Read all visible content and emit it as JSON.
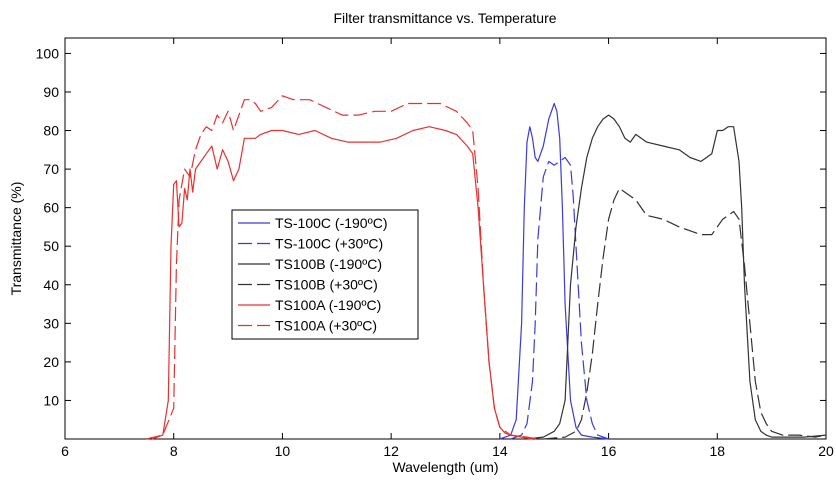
{
  "chart_data": {
    "type": "line",
    "title": "Filter transmittance vs. Temperature",
    "xlabel": "Wavelength (um)",
    "ylabel": "Transmittance (%)",
    "xlim": [
      6,
      20
    ],
    "ylim": [
      0,
      104
    ],
    "xticks": [
      6,
      8,
      10,
      12,
      14,
      16,
      18,
      20
    ],
    "yticks": [
      10,
      20,
      30,
      40,
      50,
      60,
      70,
      80,
      90,
      100
    ],
    "grid": false,
    "legend_position": "center-left",
    "series": [
      {
        "name": "TS-100C (-190ºC)",
        "color": "#3b3bdc",
        "dash": "solid",
        "x": [
          14.0,
          14.2,
          14.3,
          14.4,
          14.45,
          14.5,
          14.55,
          14.6,
          14.65,
          14.7,
          14.8,
          14.9,
          15.0,
          15.05,
          15.1,
          15.15,
          15.2,
          15.3,
          15.4,
          15.5,
          15.7,
          16.0
        ],
        "y": [
          0,
          1,
          5,
          30,
          60,
          77,
          81,
          78,
          73,
          72,
          76,
          83,
          87,
          85,
          78,
          60,
          35,
          10,
          3,
          1,
          0.5,
          0
        ]
      },
      {
        "name": "TS-100C (+30ºC)",
        "color": "#3b3bdc",
        "dash": "dashed",
        "x": [
          14.2,
          14.4,
          14.5,
          14.6,
          14.65,
          14.7,
          14.8,
          14.9,
          15.0,
          15.1,
          15.2,
          15.3,
          15.35,
          15.4,
          15.5,
          15.6,
          15.7,
          15.8,
          16.0
        ],
        "y": [
          0,
          1,
          4,
          15,
          30,
          52,
          68,
          72,
          71,
          72,
          73,
          71,
          63,
          50,
          25,
          10,
          4,
          1,
          0
        ]
      },
      {
        "name": "TS100B (-190ºC)",
        "color": "#333333",
        "dash": "solid",
        "x": [
          14.5,
          14.8,
          15.0,
          15.1,
          15.2,
          15.25,
          15.3,
          15.4,
          15.5,
          15.6,
          15.7,
          15.8,
          15.9,
          16.0,
          16.1,
          16.2,
          16.3,
          16.4,
          16.5,
          16.7,
          17.0,
          17.3,
          17.5,
          17.7,
          17.9,
          18.0,
          18.1,
          18.2,
          18.3,
          18.4,
          18.45,
          18.5,
          18.6,
          18.7,
          18.8,
          18.9,
          19.0,
          19.3,
          19.6,
          20.0
        ],
        "y": [
          0,
          0.5,
          2,
          4,
          10,
          25,
          40,
          55,
          65,
          73,
          78,
          81,
          83,
          84,
          83,
          81,
          78,
          77,
          79,
          77,
          76,
          75,
          73,
          72,
          74,
          80,
          80,
          81,
          81,
          72,
          60,
          40,
          15,
          5,
          2,
          1,
          0.5,
          0.5,
          0.5,
          1
        ]
      },
      {
        "name": "TS100B (+30ºC)",
        "color": "#333333",
        "dash": "dashed",
        "x": [
          14.8,
          15.2,
          15.4,
          15.5,
          15.6,
          15.7,
          15.8,
          15.9,
          16.0,
          16.1,
          16.2,
          16.3,
          16.5,
          16.7,
          17.0,
          17.3,
          17.5,
          17.7,
          17.9,
          18.0,
          18.1,
          18.2,
          18.3,
          18.4,
          18.5,
          18.6,
          18.7,
          18.8,
          18.9,
          19.0,
          19.2,
          19.5,
          19.8,
          20.0
        ],
        "y": [
          0,
          0.5,
          2,
          5,
          12,
          22,
          35,
          47,
          57,
          62,
          65,
          64,
          62,
          58,
          57,
          55,
          54,
          53,
          53,
          55,
          57,
          58,
          59,
          57,
          45,
          30,
          15,
          7,
          4,
          2,
          1,
          1,
          0.5,
          1
        ]
      },
      {
        "name": "TS100A (-190ºC)",
        "color": "#e83030",
        "dash": "solid",
        "x": [
          7.6,
          7.8,
          7.9,
          7.95,
          8.0,
          8.05,
          8.1,
          8.15,
          8.2,
          8.25,
          8.3,
          8.35,
          8.4,
          8.5,
          8.6,
          8.7,
          8.8,
          8.9,
          9.0,
          9.1,
          9.2,
          9.3,
          9.4,
          9.5,
          9.6,
          9.8,
          10.0,
          10.3,
          10.6,
          10.9,
          11.2,
          11.5,
          11.8,
          12.1,
          12.4,
          12.7,
          13.0,
          13.2,
          13.4,
          13.5,
          13.6,
          13.7,
          13.8,
          13.9,
          14.0,
          14.1,
          14.2,
          14.4,
          14.6
        ],
        "y": [
          0,
          1,
          10,
          50,
          66,
          67,
          55,
          56,
          65,
          62,
          70,
          64,
          70,
          72,
          74,
          76,
          70,
          75,
          72,
          67,
          70,
          78,
          78,
          78,
          79,
          80,
          80,
          79,
          80,
          78,
          77,
          77,
          77,
          78,
          80,
          81,
          80,
          79,
          76,
          74,
          60,
          40,
          20,
          8,
          3,
          1.5,
          1,
          0.5,
          0
        ]
      },
      {
        "name": "TS100A (+30ºC)",
        "color": "#e83030",
        "dash": "dashed",
        "x": [
          7.5,
          7.8,
          8.0,
          8.05,
          8.1,
          8.2,
          8.3,
          8.4,
          8.5,
          8.6,
          8.7,
          8.8,
          8.9,
          9.0,
          9.1,
          9.2,
          9.3,
          9.4,
          9.5,
          9.6,
          9.8,
          10.0,
          10.2,
          10.5,
          10.8,
          11.1,
          11.4,
          11.7,
          12.0,
          12.3,
          12.6,
          12.9,
          13.2,
          13.4,
          13.5,
          13.6,
          13.7,
          13.8,
          13.9,
          14.0,
          14.2,
          14.5,
          14.7
        ],
        "y": [
          0,
          1,
          8,
          45,
          62,
          70,
          68,
          75,
          79,
          81,
          80,
          84,
          82,
          85,
          80,
          84,
          88,
          88,
          87,
          85,
          86,
          89,
          88,
          88,
          86,
          84,
          84,
          85,
          85,
          87,
          87,
          87,
          85,
          82,
          80,
          65,
          40,
          20,
          8,
          3,
          1,
          0.5,
          0
        ]
      }
    ]
  }
}
